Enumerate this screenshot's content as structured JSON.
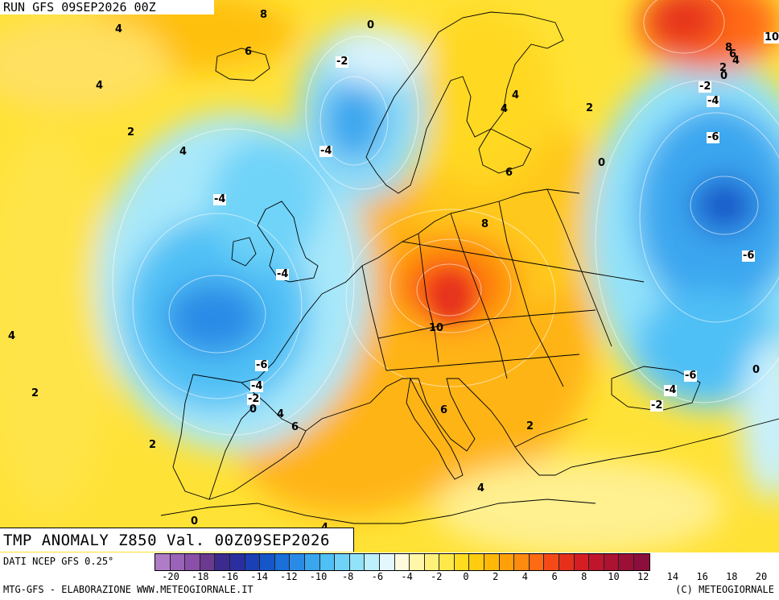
{
  "header": {
    "run": "RUN GFS 09SEP2026 00Z",
    "title": "TMP ANOMALY Z850 Val. 00Z09SEP2026"
  },
  "footer": {
    "data_source": "DATI NCEP GFS 0.25°",
    "credit_left": "MTG-GFS - ELABORAZIONE WWW.METEOGIORNALE.IT",
    "credit_right": "(C) METEOGIORNALE"
  },
  "legend": {
    "colors": [
      "#b07cc6",
      "#9a62b8",
      "#8a4fa8",
      "#6a3a8f",
      "#3b2b8e",
      "#2a2fa0",
      "#1b3fb5",
      "#1556c9",
      "#1a6fd9",
      "#2a8be6",
      "#3aa6ef",
      "#4fc0f5",
      "#6fd3f8",
      "#92e2fa",
      "#bdeffc",
      "#e3f7fd",
      "#fffbdc",
      "#fff6a8",
      "#fff07a",
      "#ffe84a",
      "#ffdc1f",
      "#ffcc10",
      "#ffb808",
      "#ffa00a",
      "#ff8a10",
      "#ff6a14",
      "#f54a18",
      "#e5301c",
      "#d41e24",
      "#c0162c",
      "#ac1232",
      "#9c1038",
      "#8c0e3c"
    ],
    "ticks": [
      "-20",
      "-18",
      "-16",
      "-14",
      "-12",
      "-10",
      "-8",
      "-6",
      "-4",
      "-2",
      "0",
      "2",
      "4",
      "6",
      "8",
      "10",
      "12",
      "14",
      "16",
      "18",
      "20"
    ]
  },
  "map": {
    "region": "Europe and North Atlantic",
    "contour_labels": [
      {
        "text": "8"
      },
      {
        "text": "4"
      },
      {
        "text": "6"
      },
      {
        "text": "0"
      },
      {
        "text": "-2"
      },
      {
        "text": "4"
      },
      {
        "text": "4"
      },
      {
        "text": "2"
      },
      {
        "text": "4"
      },
      {
        "text": "-4"
      },
      {
        "text": "-4"
      },
      {
        "text": "-4"
      },
      {
        "text": "4"
      },
      {
        "text": "4"
      },
      {
        "text": "2"
      },
      {
        "text": "6"
      },
      {
        "text": "8"
      },
      {
        "text": "0"
      },
      {
        "text": "10"
      },
      {
        "text": "-6"
      },
      {
        "text": "-4"
      },
      {
        "text": "-2"
      },
      {
        "text": "0"
      },
      {
        "text": "4"
      },
      {
        "text": "6"
      },
      {
        "text": "2"
      },
      {
        "text": "2"
      },
      {
        "text": "6"
      },
      {
        "text": "2"
      },
      {
        "text": "4"
      },
      {
        "text": "0"
      },
      {
        "text": "4"
      },
      {
        "text": "10"
      },
      {
        "text": "8"
      },
      {
        "text": "6"
      },
      {
        "text": "4"
      },
      {
        "text": "2"
      },
      {
        "text": "0"
      },
      {
        "text": "-2"
      },
      {
        "text": "-4"
      },
      {
        "text": "-6"
      },
      {
        "text": "-6"
      },
      {
        "text": "-6"
      },
      {
        "text": "-4"
      },
      {
        "text": "-2"
      },
      {
        "text": "0"
      }
    ]
  }
}
